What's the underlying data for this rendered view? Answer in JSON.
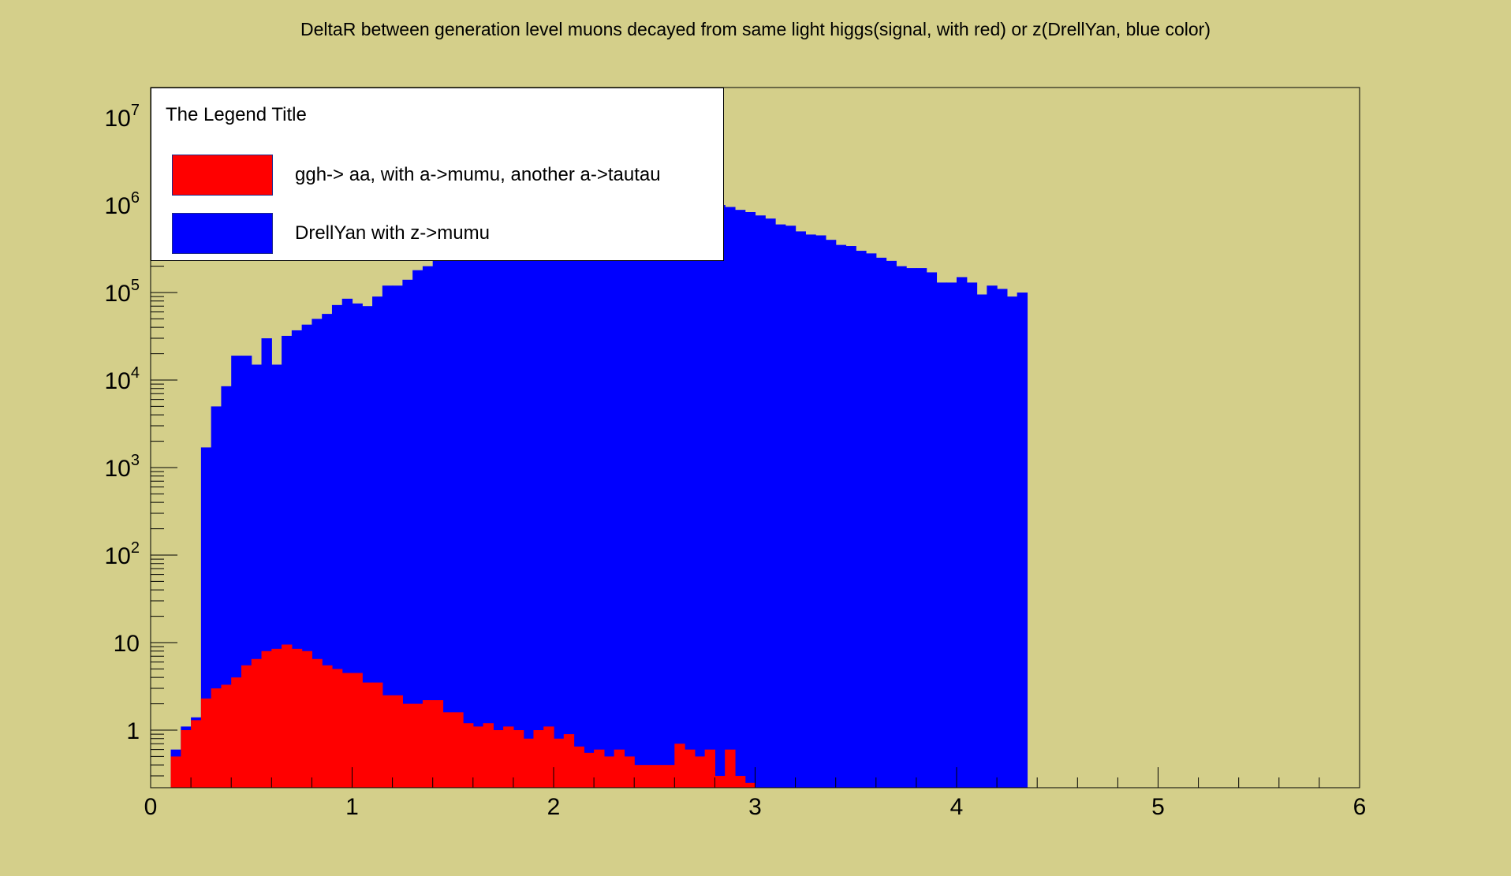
{
  "chart_data": {
    "type": "bar",
    "title": "DeltaR between generation level muons decayed from same light higgs(signal, with red) or z(DrellYan, blue color)",
    "xlabel": "",
    "ylabel": "",
    "xlim": [
      0,
      6
    ],
    "ylim": [
      0.22,
      22000000.0
    ],
    "log_y": true,
    "grid": false,
    "x_ticks": [
      "0",
      "1",
      "2",
      "3",
      "4",
      "5",
      "6"
    ],
    "y_ticks": [
      {
        "base": "10",
        "exp": "7"
      },
      {
        "base": "10",
        "exp": "6"
      },
      {
        "base": "10",
        "exp": "5"
      },
      {
        "base": "10",
        "exp": "4"
      },
      {
        "base": "10",
        "exp": "3"
      },
      {
        "base": "10",
        "exp": "2"
      },
      {
        "base": "10",
        "exp": ""
      },
      {
        "base": "1",
        "exp": ""
      }
    ],
    "legend": {
      "title": "The Legend Title",
      "placement": "top-left",
      "entries": [
        {
          "label": "ggh-> aa, with a->mumu, another a->tautau",
          "color": "#ff0000"
        },
        {
          "label": "DrellYan with z->mumu",
          "color": "#0000ff"
        }
      ]
    },
    "bin_width": 0.05,
    "series": [
      {
        "color": "#0000ff",
        "bin_start": 0.05,
        "values": [
          0.15,
          0.6,
          1.1,
          1.4,
          1700,
          5000,
          8500,
          19000,
          19000,
          15000,
          30000,
          15000,
          32000,
          37000,
          43000,
          50000,
          57000,
          72000,
          85000,
          75000,
          70000,
          90000,
          120000,
          120000,
          140000,
          180000,
          200000,
          240000,
          300000,
          380000,
          420000,
          450000,
          520000,
          610000,
          700000,
          800000,
          960000,
          1100000,
          1300000,
          1600000,
          1900000,
          2300000,
          2800000,
          3500000,
          5000000,
          4300000,
          3100000,
          2600000,
          2200000,
          1900000,
          1650000,
          1500000,
          1400000,
          1250000,
          1150000,
          1000000,
          950000,
          880000,
          830000,
          760000,
          700000,
          600000,
          580000,
          500000,
          460000,
          450000,
          400000,
          350000,
          340000,
          300000,
          280000,
          250000,
          230000,
          200000,
          190000,
          190000,
          170000,
          130000,
          130000,
          150000,
          130000,
          95000,
          120000,
          110000,
          90000,
          100000
        ]
      },
      {
        "color": "#ff0000",
        "bin_start": 0.1,
        "values": [
          0.5,
          1,
          1.3,
          2.3,
          3,
          3.3,
          4,
          5.5,
          6.5,
          8,
          8.5,
          9.5,
          8.5,
          8,
          6.5,
          5.5,
          5,
          4.5,
          4.5,
          3.5,
          3.5,
          2.5,
          2.5,
          2,
          2,
          2.2,
          2.2,
          1.6,
          1.6,
          1.2,
          1.1,
          1.2,
          1,
          1.1,
          1,
          0.8,
          1,
          1.1,
          0.8,
          0.9,
          0.65,
          0.55,
          0.6,
          0.5,
          0.6,
          0.5,
          0.4,
          0.4,
          0.4,
          0.4,
          0.7,
          0.6,
          0.5,
          0.6,
          0.3,
          0.6,
          0.3,
          0.25
        ]
      }
    ]
  }
}
